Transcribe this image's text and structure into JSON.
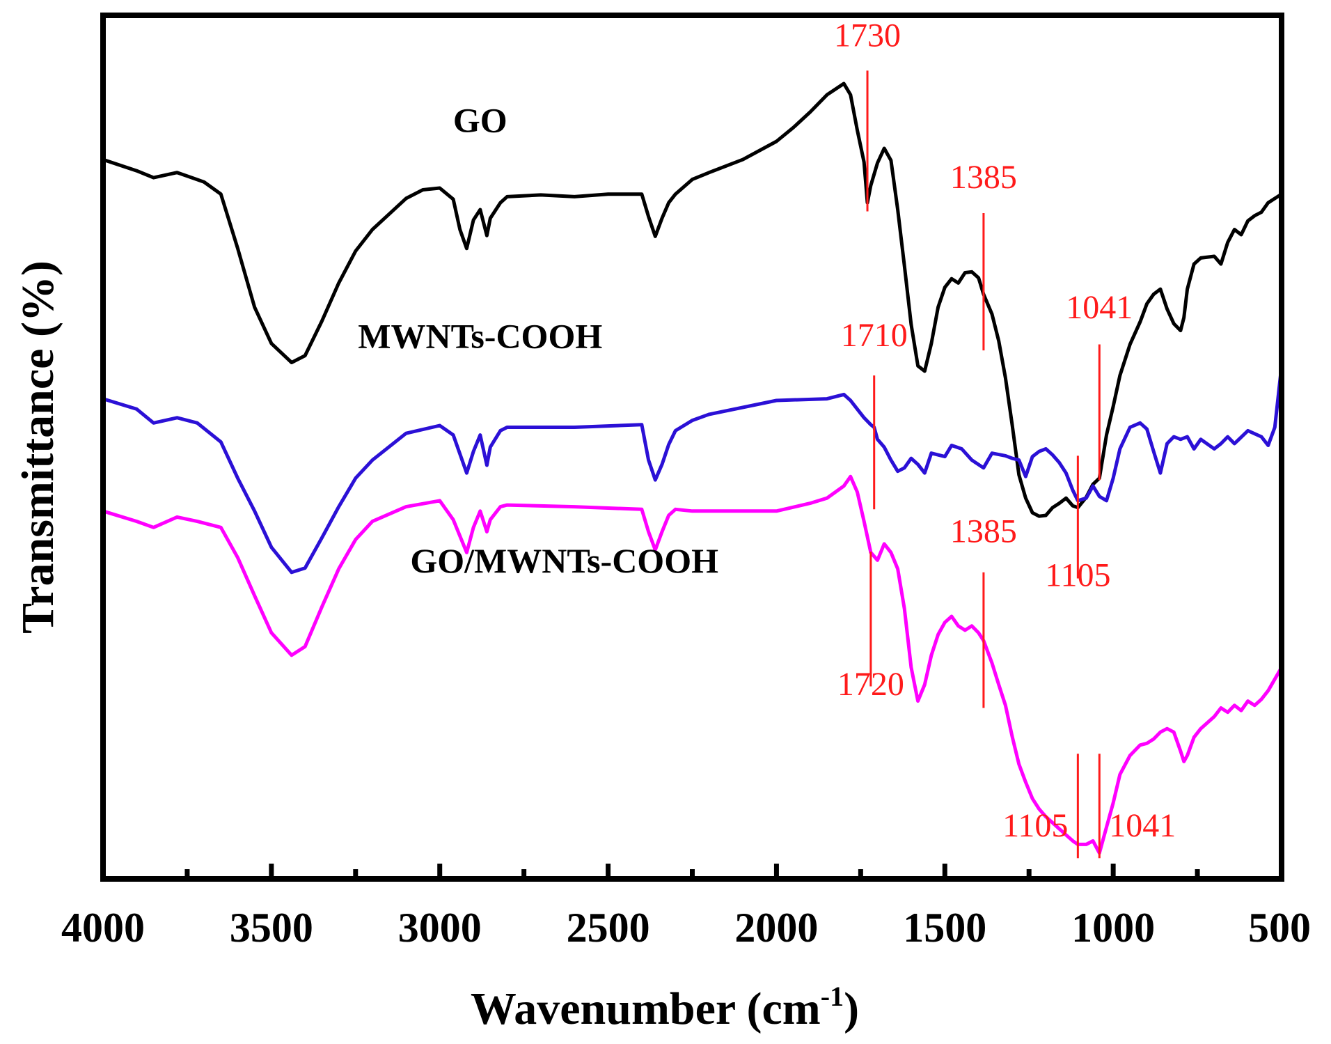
{
  "chart_data": {
    "type": "line",
    "xlabel": "Wavenumber (cm",
    "xlabel_sup": "-1",
    "xlabel_close": ")",
    "ylabel": "Transmittance (%)",
    "xlim": [
      4000,
      500
    ],
    "x_reversed": true,
    "ylim": [
      0,
      100
    ],
    "y_ticks_shown": false,
    "grid": false,
    "x_ticks": [
      "4000",
      "3500",
      "3000",
      "2500",
      "2000",
      "1500",
      "1000",
      "500"
    ],
    "colors": {
      "frame": "#000000",
      "annotation": "#ff1a1a"
    },
    "series": [
      {
        "name": "GO",
        "color": "#000000",
        "x": [
          4000,
          3900,
          3850,
          3780,
          3700,
          3650,
          3600,
          3550,
          3500,
          3440,
          3400,
          3350,
          3300,
          3250,
          3200,
          3150,
          3100,
          3050,
          3000,
          2960,
          2940,
          2920,
          2900,
          2880,
          2860,
          2850,
          2820,
          2800,
          2700,
          2600,
          2500,
          2400,
          2380,
          2360,
          2340,
          2320,
          2300,
          2250,
          2200,
          2100,
          2000,
          1950,
          1900,
          1850,
          1800,
          1780,
          1760,
          1740,
          1730,
          1720,
          1700,
          1680,
          1660,
          1640,
          1620,
          1600,
          1580,
          1560,
          1540,
          1520,
          1500,
          1480,
          1460,
          1440,
          1420,
          1400,
          1385,
          1360,
          1340,
          1320,
          1300,
          1280,
          1260,
          1240,
          1220,
          1200,
          1180,
          1160,
          1140,
          1120,
          1105,
          1080,
          1060,
          1041,
          1020,
          1000,
          980,
          950,
          920,
          900,
          880,
          860,
          840,
          820,
          800,
          790,
          780,
          760,
          740,
          700,
          680,
          660,
          640,
          620,
          600,
          580,
          560,
          540,
          500
        ],
        "y": [
          83.3,
          82.0,
          81.2,
          81.8,
          80.7,
          79.3,
          73.0,
          66.2,
          62.0,
          59.8,
          60.6,
          64.6,
          69.0,
          72.7,
          75.2,
          77.0,
          78.8,
          79.8,
          80.0,
          78.7,
          75.2,
          73.0,
          76.3,
          77.5,
          74.5,
          76.5,
          78.3,
          79.0,
          79.2,
          79.0,
          79.3,
          79.3,
          76.7,
          74.4,
          76.5,
          78.3,
          79.3,
          81.0,
          81.8,
          83.3,
          85.4,
          87.0,
          88.8,
          90.8,
          92.1,
          90.8,
          86.7,
          83.0,
          78.3,
          80.3,
          82.9,
          84.6,
          83.2,
          77.5,
          71.0,
          64.2,
          59.4,
          58.8,
          62.0,
          66.2,
          68.5,
          69.5,
          69.0,
          70.2,
          70.3,
          69.6,
          67.7,
          65.4,
          62.3,
          58.0,
          52.6,
          46.8,
          44.1,
          42.4,
          42.0,
          42.1,
          43.0,
          43.5,
          44.1,
          43.2,
          43.0,
          44.2,
          45.7,
          46.4,
          51.4,
          54.7,
          58.3,
          61.9,
          64.5,
          66.6,
          67.7,
          68.3,
          66.0,
          64.3,
          63.5,
          65.0,
          68.3,
          71.2,
          71.9,
          72.1,
          71.2,
          73.7,
          75.2,
          74.6,
          76.2,
          76.8,
          77.2,
          78.3,
          79.3
        ]
      },
      {
        "name": "MWNTs-COOH",
        "color": "#2b10d6",
        "x": [
          4000,
          3900,
          3850,
          3780,
          3720,
          3650,
          3600,
          3550,
          3500,
          3440,
          3400,
          3350,
          3300,
          3250,
          3200,
          3100,
          3000,
          2960,
          2920,
          2900,
          2880,
          2860,
          2850,
          2820,
          2800,
          2600,
          2400,
          2380,
          2360,
          2340,
          2320,
          2300,
          2250,
          2200,
          2000,
          1850,
          1800,
          1780,
          1760,
          1740,
          1720,
          1710,
          1700,
          1680,
          1660,
          1640,
          1620,
          1600,
          1580,
          1560,
          1540,
          1500,
          1480,
          1450,
          1420,
          1385,
          1360,
          1320,
          1300,
          1280,
          1260,
          1240,
          1220,
          1200,
          1180,
          1160,
          1140,
          1120,
          1105,
          1080,
          1060,
          1041,
          1020,
          1000,
          980,
          950,
          920,
          900,
          880,
          860,
          840,
          820,
          800,
          780,
          760,
          740,
          700,
          680,
          660,
          640,
          600,
          560,
          540,
          520,
          500
        ],
        "y": [
          55.6,
          54.4,
          52.8,
          53.4,
          52.8,
          50.6,
          46.4,
          42.6,
          38.4,
          35.5,
          36.0,
          39.5,
          43.1,
          46.4,
          48.5,
          51.6,
          52.5,
          51.4,
          47.0,
          49.5,
          51.4,
          47.9,
          50.0,
          51.9,
          52.3,
          52.3,
          52.6,
          48.5,
          46.2,
          48.0,
          50.3,
          51.9,
          53.1,
          53.8,
          55.4,
          55.6,
          56.1,
          55.4,
          54.4,
          53.4,
          52.6,
          52.3,
          50.9,
          50.0,
          48.5,
          47.2,
          47.6,
          48.7,
          48.0,
          47.0,
          49.3,
          48.9,
          50.2,
          49.8,
          48.5,
          47.6,
          49.3,
          49.0,
          48.7,
          48.5,
          46.6,
          48.9,
          49.5,
          49.8,
          49.1,
          48.2,
          47.0,
          45.0,
          43.8,
          44.1,
          45.5,
          44.3,
          43.8,
          46.4,
          49.8,
          52.3,
          52.8,
          52.1,
          49.5,
          47.0,
          50.4,
          51.2,
          50.9,
          51.2,
          49.8,
          50.9,
          49.8,
          50.4,
          51.2,
          50.4,
          51.9,
          51.2,
          50.2,
          52.3,
          59.4
        ]
      },
      {
        "name": "GO/MWNTs-COOH",
        "color": "#ff00ff",
        "x": [
          4000,
          3900,
          3850,
          3780,
          3720,
          3650,
          3600,
          3550,
          3500,
          3440,
          3400,
          3350,
          3300,
          3250,
          3200,
          3100,
          3000,
          2960,
          2920,
          2900,
          2880,
          2860,
          2850,
          2820,
          2800,
          2600,
          2400,
          2380,
          2360,
          2340,
          2320,
          2300,
          2250,
          2200,
          2000,
          1900,
          1850,
          1800,
          1780,
          1760,
          1740,
          1720,
          1700,
          1680,
          1660,
          1640,
          1620,
          1600,
          1580,
          1560,
          1540,
          1520,
          1500,
          1480,
          1460,
          1440,
          1420,
          1400,
          1385,
          1360,
          1340,
          1320,
          1300,
          1280,
          1260,
          1240,
          1220,
          1200,
          1180,
          1160,
          1140,
          1120,
          1105,
          1080,
          1060,
          1041,
          1020,
          1000,
          980,
          950,
          920,
          900,
          880,
          860,
          840,
          820,
          800,
          790,
          780,
          760,
          740,
          700,
          680,
          660,
          640,
          620,
          600,
          580,
          560,
          540,
          500
        ],
        "y": [
          42.6,
          41.4,
          40.7,
          41.9,
          41.4,
          40.7,
          37.2,
          32.8,
          28.5,
          25.9,
          26.9,
          31.5,
          35.9,
          39.3,
          41.4,
          43.1,
          43.8,
          41.6,
          37.8,
          40.7,
          42.6,
          40.2,
          41.6,
          43.1,
          43.3,
          43.1,
          42.8,
          40.2,
          38.1,
          40.2,
          42.1,
          42.8,
          42.6,
          42.6,
          42.6,
          43.5,
          44.1,
          45.5,
          46.6,
          44.8,
          41.4,
          37.8,
          36.9,
          38.8,
          37.8,
          35.9,
          31.3,
          24.5,
          20.6,
          22.5,
          25.9,
          28.3,
          29.7,
          30.4,
          29.3,
          28.8,
          29.3,
          28.5,
          27.6,
          25.0,
          22.5,
          20.1,
          16.5,
          13.3,
          11.2,
          9.3,
          8.1,
          7.2,
          6.5,
          5.8,
          5.1,
          4.4,
          4.0,
          4.0,
          4.4,
          3.0,
          6.0,
          8.8,
          12.1,
          14.3,
          15.5,
          15.7,
          16.2,
          17.0,
          17.4,
          17.0,
          14.8,
          13.6,
          14.3,
          16.4,
          17.4,
          18.8,
          19.8,
          19.3,
          20.1,
          19.5,
          20.6,
          20.1,
          20.8,
          21.8,
          24.5
        ]
      }
    ],
    "series_labels": [
      {
        "text": "GO",
        "x": 2880,
        "y": 86.5
      },
      {
        "text": "MWNTs-COOH",
        "x": 2880,
        "y": 61.5
      },
      {
        "text": "GO/MWNTs-COOH",
        "x": 2630,
        "y": 35.5
      }
    ],
    "annotations": [
      {
        "text": "1730",
        "x": 1730,
        "y_top": 93.6,
        "y_bottom": 77.3,
        "label_x": 1730,
        "label_y": 96.4
      },
      {
        "text": "1385",
        "x": 1385,
        "y_top": 77.1,
        "y_bottom": 61.2,
        "label_x": 1385,
        "label_y": 80.0
      },
      {
        "text": "1041",
        "x": 1041,
        "y_top": 61.9,
        "y_bottom": 46.2,
        "label_x": 1041,
        "label_y": 64.9
      },
      {
        "text": "1710",
        "x": 1710,
        "y_top": 58.3,
        "y_bottom": 42.8,
        "label_x": 1710,
        "label_y": 61.7
      },
      {
        "text": "1105",
        "x": 1105,
        "y_top": 49.0,
        "y_bottom": 34.8,
        "label_x": 1105,
        "label_y": 33.9
      },
      {
        "text": "1720",
        "x": 1720,
        "y_top": 37.9,
        "y_bottom": 22.3,
        "label_x": 1720,
        "label_y": 21.3
      },
      {
        "text": "1385",
        "x": 1385,
        "y_top": 35.5,
        "y_bottom": 19.8,
        "label_x": 1385,
        "label_y": 39.0
      },
      {
        "text": "1105",
        "x": 1105,
        "y_top": 14.5,
        "y_bottom": 2.4,
        "label_x": 1105,
        "label_y": 4.9,
        "align": "end"
      },
      {
        "text": "1041",
        "x": 1041,
        "y_top": 14.5,
        "y_bottom": 2.4,
        "label_x": 1041,
        "label_y": 4.9,
        "align": "start"
      }
    ]
  }
}
